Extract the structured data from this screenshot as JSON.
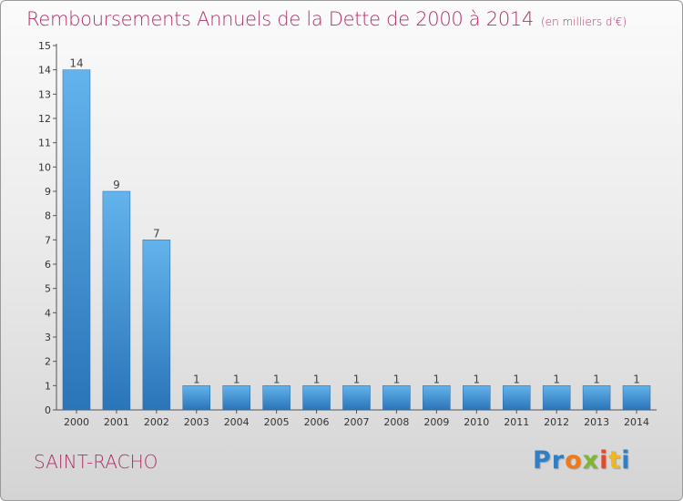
{
  "chart_data": {
    "type": "bar",
    "title": "Remboursements Annuels de la Dette de 2000 à 2014",
    "unit": "(en milliers d'€)",
    "categories": [
      "2000",
      "2001",
      "2002",
      "2003",
      "2004",
      "2005",
      "2006",
      "2007",
      "2008",
      "2009",
      "2010",
      "2011",
      "2012",
      "2013",
      "2014"
    ],
    "values": [
      14,
      9,
      7,
      1,
      1,
      1,
      1,
      1,
      1,
      1,
      1,
      1,
      1,
      1,
      1
    ],
    "data_labels": [
      "14",
      "9",
      "7",
      "1",
      "1",
      "1",
      "1",
      "1",
      "1",
      "1",
      "1",
      "1",
      "1",
      "1",
      "1"
    ],
    "yticks": [
      "0",
      "1",
      "2",
      "3",
      "4",
      "5",
      "6",
      "7",
      "8",
      "9",
      "10",
      "11",
      "12",
      "13",
      "14",
      "15"
    ],
    "ylim": [
      0,
      15
    ],
    "xlabel": "",
    "ylabel": "",
    "grid": false,
    "legend": "none",
    "colors": {
      "bar_top": "#63b3ec",
      "bar_bottom": "#2a74b8",
      "axis": "#555555",
      "title": "#b0306a"
    }
  },
  "commune": "SAINT-RACHO",
  "logo": {
    "text": "Proxiti",
    "parts": [
      "Pr",
      "o",
      "x",
      "i",
      "t",
      "i"
    ]
  }
}
